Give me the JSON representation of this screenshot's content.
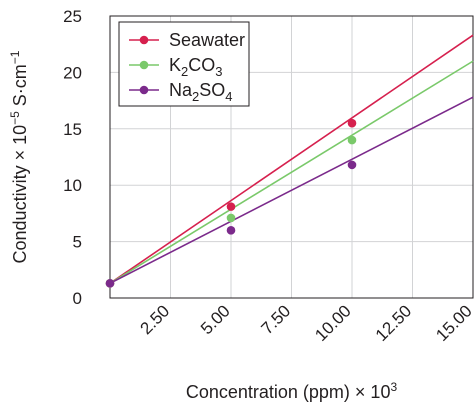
{
  "chart_data": {
    "type": "line",
    "title": "",
    "xlabel": "Concentration (ppm) × 10",
    "xlabel_superscript": "3",
    "ylabel": "Conductivity × 10",
    "ylabel_superscript": "−5",
    "ylabel_unit": " S·cm",
    "ylabel_unit_superscript": "−1",
    "xlim": [
      0,
      15
    ],
    "ylim": [
      0,
      25
    ],
    "x_ticks": [
      2.5,
      5.0,
      7.5,
      10.0,
      12.5,
      15.0
    ],
    "x_tick_labels": [
      "2.50",
      "5.00",
      "7.50",
      "10.00",
      "12.50",
      "15.00"
    ],
    "y_ticks": [
      0,
      5,
      10,
      15,
      20,
      25
    ],
    "y_tick_labels": [
      "0",
      "5",
      "10",
      "15",
      "20",
      "25"
    ],
    "grid": true,
    "legend_position": "top-left",
    "series": [
      {
        "name": "Seawater",
        "color": "#d6204e",
        "line": [
          [
            0,
            1.3
          ],
          [
            15,
            23.3
          ]
        ],
        "markers": [
          [
            0,
            1.3
          ],
          [
            5,
            8.1
          ],
          [
            10,
            15.5
          ]
        ]
      },
      {
        "name": "K2CO3",
        "name_parts": [
          [
            "K",
            ""
          ],
          [
            "2",
            "sub"
          ],
          [
            "CO",
            ""
          ],
          [
            "3",
            "sub"
          ]
        ],
        "color": "#7ac96a",
        "line": [
          [
            0,
            1.3
          ],
          [
            15,
            21.0
          ]
        ],
        "markers": [
          [
            0,
            1.3
          ],
          [
            5,
            7.1
          ],
          [
            10,
            14.0
          ]
        ]
      },
      {
        "name": "Na2SO4",
        "name_parts": [
          [
            "Na",
            ""
          ],
          [
            "2",
            "sub"
          ],
          [
            "SO",
            ""
          ],
          [
            "4",
            "sub"
          ]
        ],
        "color": "#7b2a8b",
        "line": [
          [
            0,
            1.3
          ],
          [
            15,
            17.8
          ]
        ],
        "markers": [
          [
            0,
            1.3
          ],
          [
            5,
            6.0
          ],
          [
            10,
            11.8
          ]
        ]
      }
    ]
  }
}
